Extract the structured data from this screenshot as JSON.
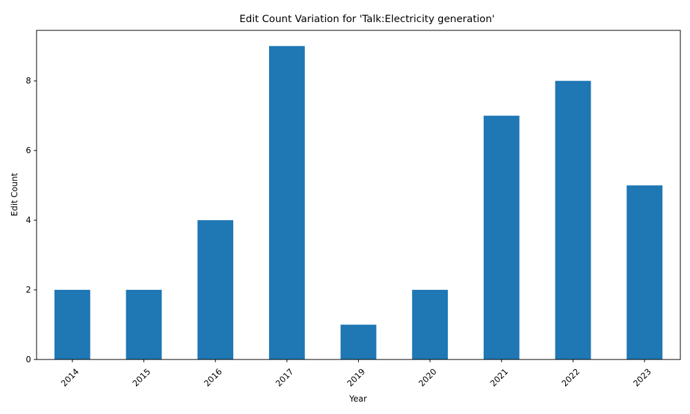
{
  "chart_data": {
    "type": "bar",
    "title": "Edit Count Variation for 'Talk:Electricity generation'",
    "xlabel": "Year",
    "ylabel": "Edit Count",
    "categories": [
      "2014",
      "2015",
      "2016",
      "2017",
      "2019",
      "2020",
      "2021",
      "2022",
      "2023"
    ],
    "values": [
      2,
      2,
      4,
      9,
      1,
      2,
      7,
      8,
      5
    ],
    "ylim": [
      0,
      9.45
    ],
    "yticks": [
      0,
      2,
      4,
      6,
      8
    ],
    "bar_color": "#1f77b4",
    "grid": false,
    "legend": "none",
    "xtick_rotation": 45
  }
}
